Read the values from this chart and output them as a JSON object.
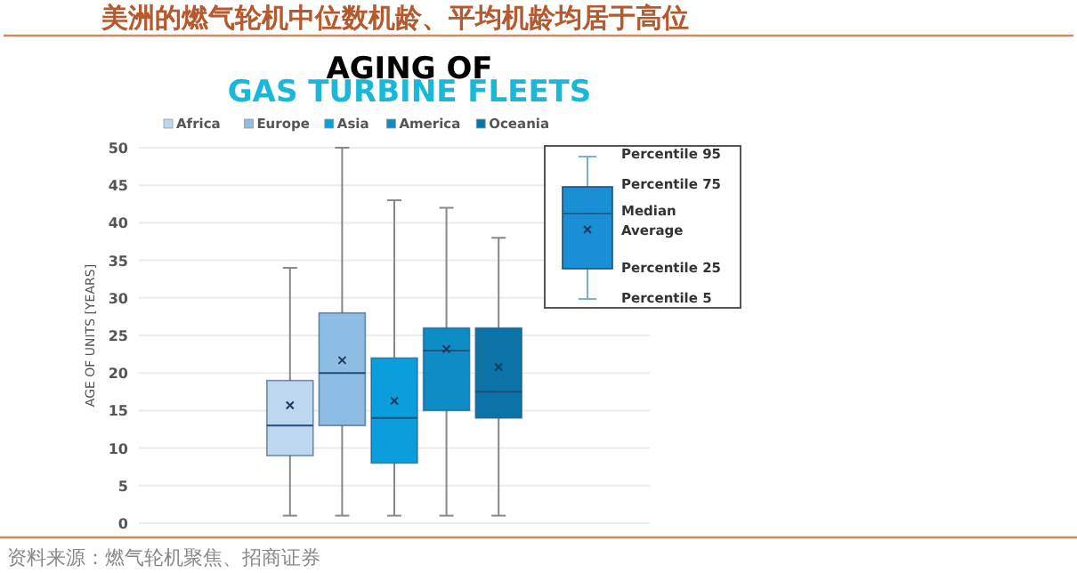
{
  "chart_data": {
    "type": "box",
    "title": "美洲的燃气轮机中位数机龄、平均机龄均居于高位",
    "categories": [
      null
    ],
    "series": [
      {
        "name": "Africa",
        "color": "#bcd7ee",
        "boxes": [
          {
            "low": 1,
            "q1": 9,
            "median": 13,
            "q3": 19,
            "high": 34,
            "mean": 15.7
          }
        ]
      },
      {
        "name": "Europe",
        "color": "#8dbde3",
        "boxes": [
          {
            "low": 1,
            "q1": 13,
            "median": 20,
            "q3": 28,
            "high": 50,
            "mean": 21.7
          }
        ]
      },
      {
        "name": "Asia",
        "color": "#0a9fdc",
        "boxes": [
          {
            "low": 1,
            "q1": 8,
            "median": 14,
            "q3": 22,
            "high": 43,
            "mean": 16.3
          }
        ]
      },
      {
        "name": "America",
        "color": "#0d8cc6",
        "boxes": [
          {
            "low": 1,
            "q1": 15,
            "median": 23,
            "q3": 26,
            "high": 42,
            "mean": 23.2
          }
        ]
      },
      {
        "name": "Oceania",
        "color": "#0b73a5",
        "boxes": [
          {
            "low": 1,
            "q1": 14,
            "median": 17.5,
            "q3": 26,
            "high": 38,
            "mean": 20.8
          }
        ]
      }
    ],
    "ylim": [
      0,
      50
    ],
    "yticks": [
      0,
      5,
      10,
      15,
      20,
      25,
      30,
      35,
      40,
      45,
      50
    ],
    "ylabel": "AGE OF UNITS [YEARS]",
    "grid": "y",
    "legend": "top",
    "annotations": [
      "AGING OF",
      "GAS TURBINE FLEETS",
      "Percentile 95",
      "Percentile 75",
      "Median",
      "Average",
      "Percentile 25",
      "Percentile 5",
      "资料来源：燃气轮机聚焦、招商证券"
    ]
  }
}
